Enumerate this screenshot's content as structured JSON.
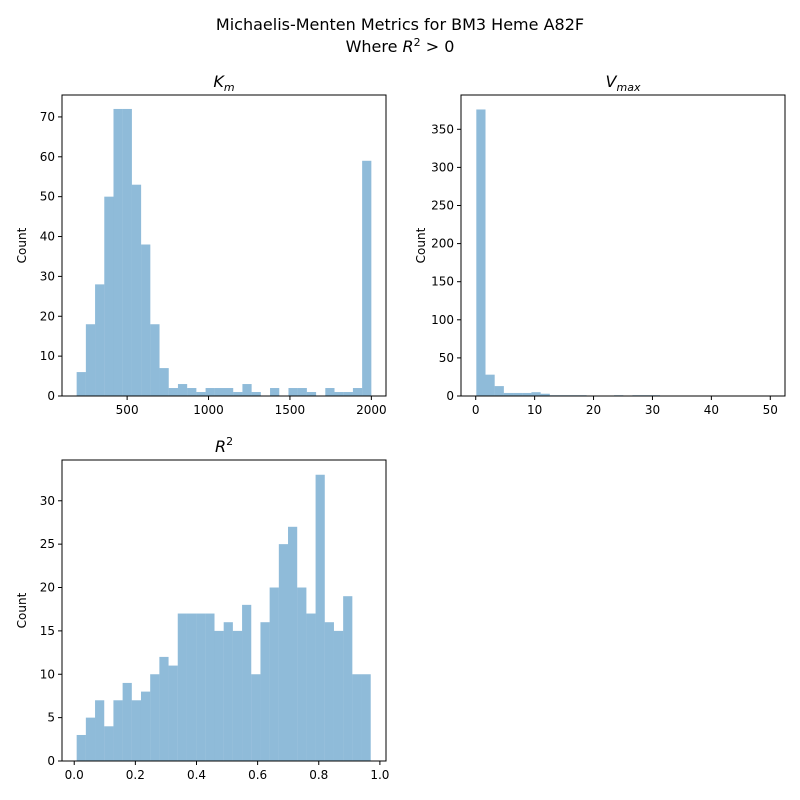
{
  "figure": {
    "title_line1": "Michaelis-Menten Metrics for BM3 Heme A82F",
    "title_line2_prefix": "Where ",
    "title_line2_var": "R",
    "title_line2_sup": "2",
    "title_line2_suffix": " > 0"
  },
  "chart_data": [
    {
      "type": "bar",
      "title_base": "K",
      "title_sub": "m",
      "title_sup": "",
      "ylabel": "Count",
      "bar_color": "#1f77b4",
      "bar_alpha": 0.5,
      "xlim": [
        100,
        2090
      ],
      "ylim": [
        0,
        75.5
      ],
      "xticks": [
        500,
        1000,
        1500,
        2000
      ],
      "xtick_labels": [
        "500",
        "1000",
        "1500",
        "2000"
      ],
      "yticks": [
        0,
        10,
        20,
        30,
        40,
        50,
        60,
        70
      ],
      "bin_start": 190,
      "bin_end": 2000,
      "values": [
        6,
        18,
        28,
        50,
        72,
        72,
        53,
        38,
        18,
        7,
        2,
        3,
        2,
        1,
        2,
        2,
        2,
        1,
        3,
        1,
        0,
        2,
        0,
        2,
        2,
        1,
        0,
        2,
        1,
        1,
        2,
        59
      ]
    },
    {
      "type": "bar",
      "title_base": "V",
      "title_sub": "max",
      "title_sup": "",
      "ylabel": "Count",
      "bar_color": "#1f77b4",
      "bar_alpha": 0.5,
      "xlim": [
        -2.5,
        52.5
      ],
      "ylim": [
        0,
        395
      ],
      "xticks": [
        0,
        10,
        20,
        30,
        40,
        50
      ],
      "xtick_labels": [
        "0",
        "10",
        "20",
        "30",
        "40",
        "50"
      ],
      "yticks": [
        0,
        50,
        100,
        150,
        200,
        250,
        300,
        350
      ],
      "bin_start": 0.1,
      "bin_end": 50,
      "values": [
        376,
        28,
        13,
        4,
        4,
        4,
        5,
        3,
        1,
        1,
        1,
        1,
        0,
        0,
        0,
        1,
        0,
        1,
        1,
        1,
        0,
        0,
        0,
        0,
        0,
        0,
        0,
        0,
        0,
        0,
        0,
        0
      ]
    },
    {
      "type": "bar",
      "title_base": "R",
      "title_sub": "",
      "title_sup": "2",
      "ylabel": "Count",
      "bar_color": "#1f77b4",
      "bar_alpha": 0.5,
      "xlim": [
        -0.04,
        1.02
      ],
      "ylim": [
        0,
        34.7
      ],
      "xticks": [
        0,
        0.2,
        0.4,
        0.6,
        0.8,
        1.0
      ],
      "xtick_labels": [
        "0.0",
        "0.2",
        "0.4",
        "0.6",
        "0.8",
        "1.0"
      ],
      "yticks": [
        0,
        5,
        10,
        15,
        20,
        25,
        30
      ],
      "bin_start": 0.008,
      "bin_end": 0.97,
      "values": [
        3,
        5,
        7,
        4,
        7,
        9,
        7,
        8,
        10,
        12,
        11,
        17,
        17,
        17,
        17,
        15,
        16,
        15,
        18,
        10,
        16,
        20,
        25,
        27,
        20,
        17,
        33,
        16,
        15,
        19,
        10,
        10
      ]
    }
  ]
}
